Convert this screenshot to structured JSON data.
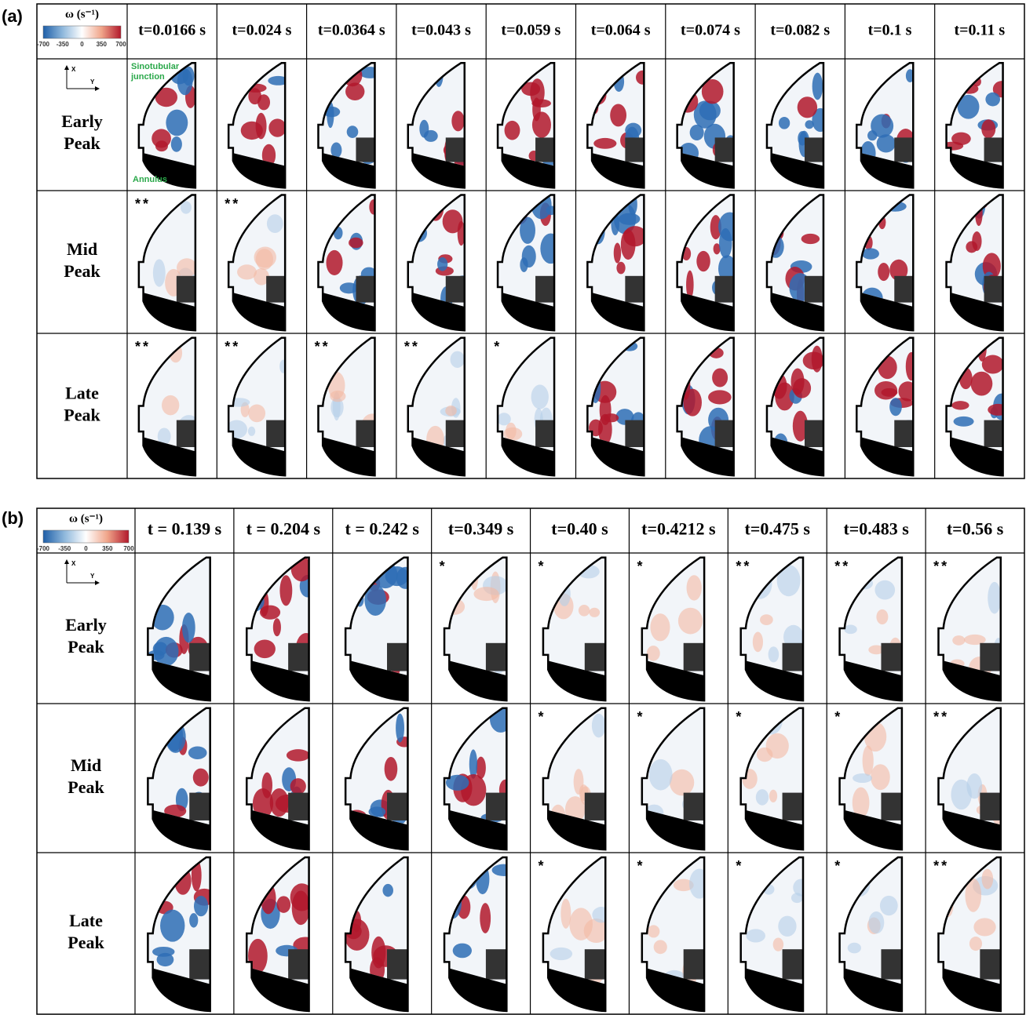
{
  "panels": [
    {
      "label": "(a)",
      "colorbar": {
        "title": "ω (s⁻¹)",
        "ticks": [
          -700,
          -350,
          0,
          350,
          700
        ]
      },
      "axes": {
        "x": "X",
        "y": "Y"
      },
      "annotations": {
        "top": [
          "Sinotubular",
          "junction"
        ],
        "bottom": "Annulus"
      },
      "columns": [
        "t=0.0166 s",
        "t=0.024 s",
        "t=0.0364 s",
        "t=0.043 s",
        "t=0.059 s",
        "t=0.064 s",
        "t=0.074 s",
        "t=0.082 s",
        "t=0.1 s",
        "t=0.11 s"
      ],
      "rows": [
        {
          "label": [
            "Early",
            "Peak"
          ],
          "marks": [
            null,
            null,
            null,
            null,
            null,
            null,
            null,
            null,
            null,
            null
          ]
        },
        {
          "label": [
            "Mid",
            "Peak"
          ],
          "marks": [
            "**",
            "**",
            null,
            null,
            null,
            null,
            null,
            null,
            null,
            null
          ]
        },
        {
          "label": [
            "Late",
            "Peak"
          ],
          "marks": [
            "**",
            "**",
            "**",
            "**",
            "*",
            null,
            null,
            null,
            null,
            null
          ]
        }
      ]
    },
    {
      "label": "(b)",
      "colorbar": {
        "title": "ω (s⁻¹)",
        "ticks": [
          -700,
          -350,
          0,
          350,
          700
        ]
      },
      "axes": {
        "x": "X",
        "y": "Y"
      },
      "columns": [
        "t = 0.139 s",
        "t = 0.204 s",
        "t = 0.242 s",
        "t=0.349 s",
        "t=0.40 s",
        "t=0.4212 s",
        "t=0.475 s",
        "t=0.483 s",
        "t=0.56 s"
      ],
      "rows": [
        {
          "label": [
            "Early",
            "Peak"
          ],
          "marks": [
            null,
            null,
            null,
            "*",
            "*",
            "*",
            "**",
            "**",
            "**"
          ]
        },
        {
          "label": [
            "Mid",
            "Peak"
          ],
          "marks": [
            null,
            null,
            null,
            null,
            "*",
            "*",
            "*",
            "*",
            "**"
          ]
        },
        {
          "label": [
            "Late",
            "Peak"
          ],
          "marks": [
            null,
            null,
            null,
            null,
            "*",
            "*",
            "*",
            "*",
            "**"
          ]
        }
      ]
    }
  ]
}
